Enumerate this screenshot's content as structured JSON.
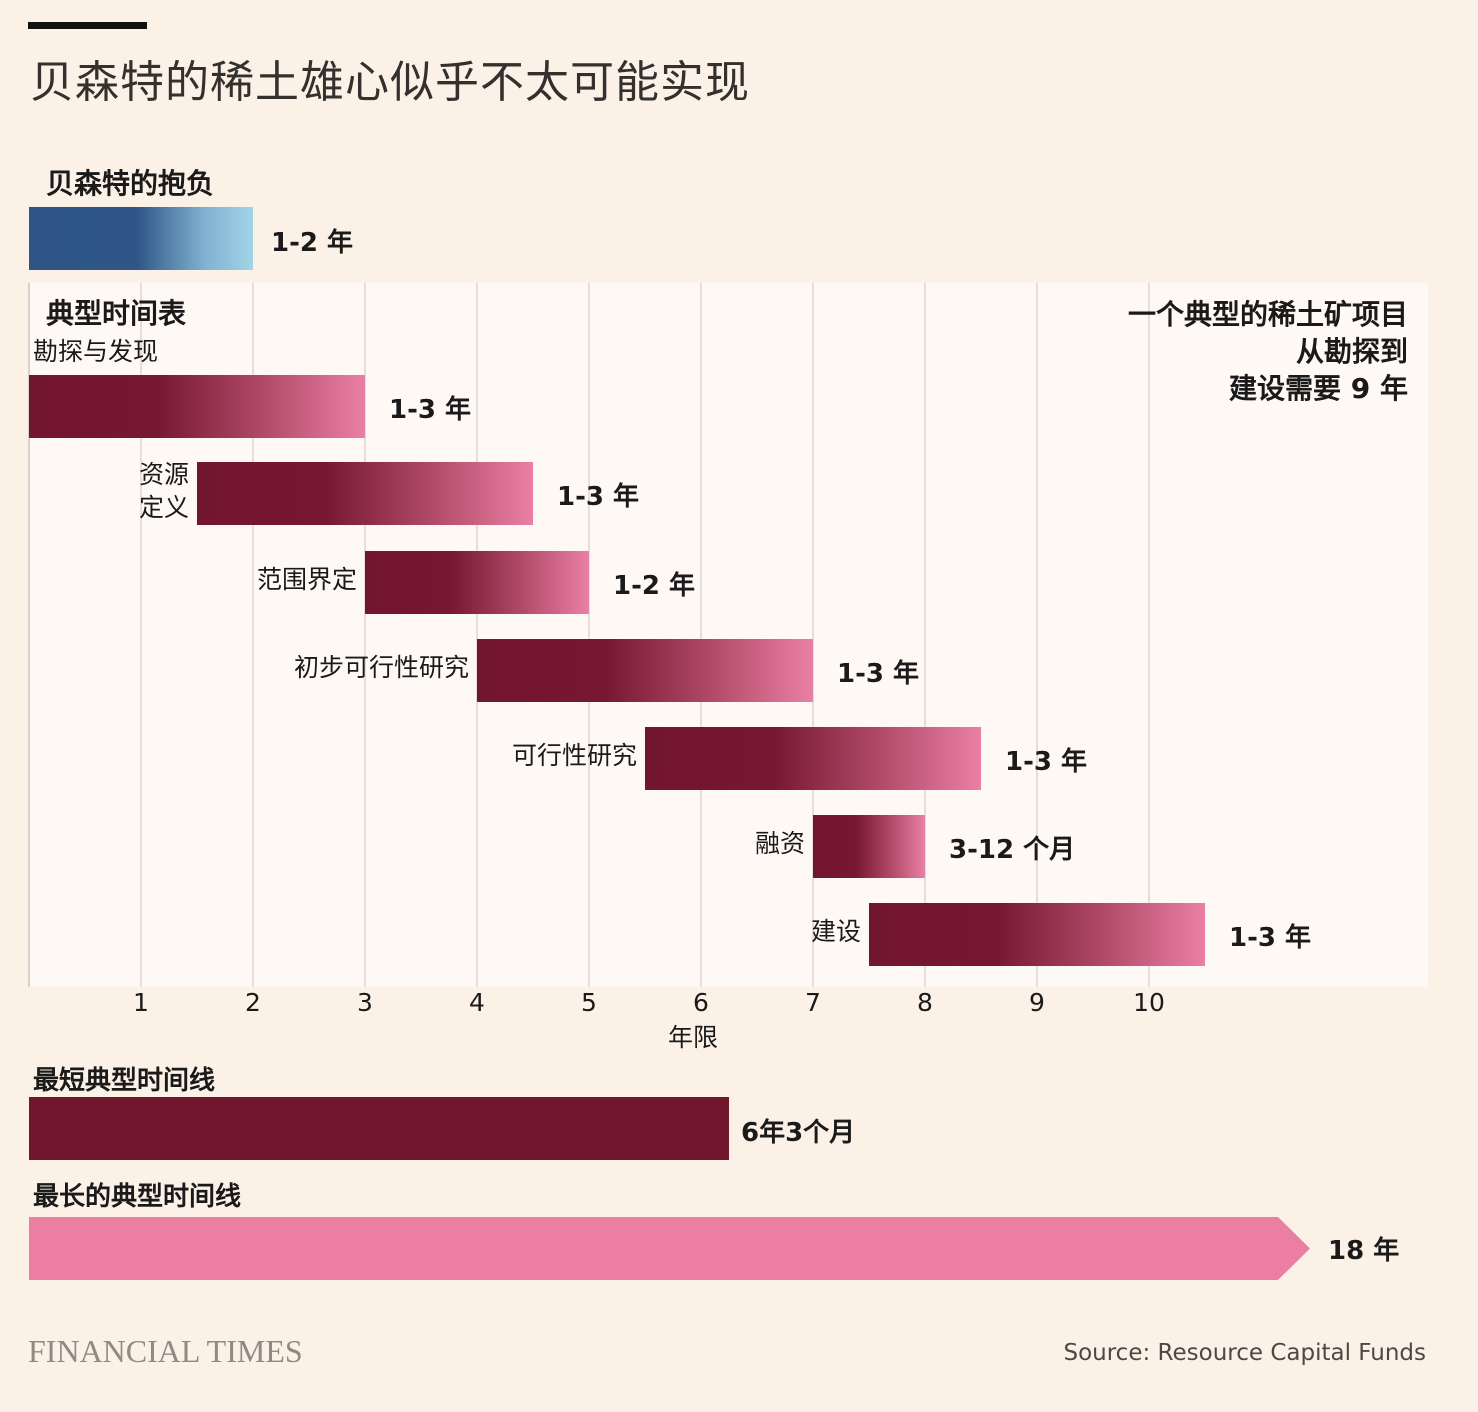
{
  "title": "贝森特的稀土雄心似乎不太可能实现",
  "colors": {
    "background": "#fcf1e7",
    "plot_background": "#fff9f5",
    "maroon": "#72162e",
    "pink": "#ea7fa4",
    "blue_dark": "#2e5585",
    "blue_light": "#a3d4e6"
  },
  "chart_data": [
    {
      "type": "bar",
      "subtitle": "贝森特的抱负",
      "bars": [
        {
          "label": "",
          "start": 0,
          "end": 2,
          "value_label": "1-2 年",
          "color": "blue"
        }
      ]
    },
    {
      "type": "bar",
      "subtitle": "典型时间表",
      "annotation": [
        "一个典型的稀土矿项目",
        "从勘探到",
        "建设需要 9 年"
      ],
      "xlabel": "年限",
      "xlim": [
        0,
        12.5
      ],
      "xticks": [
        "1",
        "2",
        "3",
        "4",
        "5",
        "6",
        "7",
        "8",
        "9",
        "10"
      ],
      "grid": true,
      "bars": [
        {
          "label": "勘探与发现",
          "start": 0,
          "end": 3,
          "value_label": "1-3 年"
        },
        {
          "label": "资源\n定义",
          "start": 1.5,
          "end": 4.5,
          "value_label": "1-3 年"
        },
        {
          "label": "范围界定",
          "start": 3,
          "end": 5,
          "value_label": "1-2 年"
        },
        {
          "label": "初步可行性研究",
          "start": 4,
          "end": 7,
          "value_label": "1-3 年"
        },
        {
          "label": "可行性研究",
          "start": 5.5,
          "end": 8.5,
          "value_label": "1-3 年"
        },
        {
          "label": "融资",
          "start": 7,
          "end": 8,
          "value_label": "3-12 个月"
        },
        {
          "label": "建设",
          "start": 7.5,
          "end": 10.5,
          "value_label": "1-3 年"
        }
      ]
    },
    {
      "type": "bar",
      "bars": [
        {
          "label": "最短典型时间线",
          "start": 0,
          "end": 6.25,
          "value_label": "6年3个月",
          "color": "maroon"
        },
        {
          "label": "最长的典型时间线",
          "start": 0,
          "end": 18,
          "value_label": "18 年",
          "color": "pink",
          "shape": "arrow"
        }
      ]
    }
  ],
  "footer": {
    "logo": "FINANCIAL TIMES",
    "source": "Source: Resource Capital Funds"
  }
}
